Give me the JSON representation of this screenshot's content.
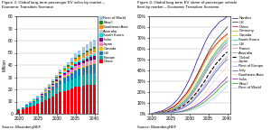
{
  "chart_data": [
    {
      "type": "bar",
      "stacked": true,
      "title": "Figure 3: Global long-term passenger EV sales by market –\nEconomic Transition Scenario",
      "annotation": "Source: BloombergNEF",
      "y_label": "Million",
      "x": [
        2020,
        2021,
        2022,
        2023,
        2024,
        2025,
        2026,
        2027,
        2028,
        2029,
        2030,
        2031,
        2032,
        2033,
        2034,
        2035,
        2036,
        2037,
        2038,
        2039,
        2040
      ],
      "series": [
        {
          "name": "China",
          "color": "#e8000d",
          "values": [
            3.0,
            3.5,
            5.0,
            6.0,
            7.0,
            8.0,
            9.5,
            11.0,
            12.5,
            14.0,
            16.0,
            17.5,
            18.5,
            19.5,
            20.5,
            22.0,
            22.5,
            23.0,
            23.5,
            23.8,
            24.0
          ]
        },
        {
          "name": "Europe",
          "color": "#00b0b0",
          "values": [
            0.5,
            1.0,
            1.5,
            2.0,
            2.5,
            3.0,
            3.5,
            4.0,
            4.5,
            5.0,
            5.5,
            6.0,
            6.5,
            7.0,
            7.5,
            8.0,
            8.3,
            8.6,
            8.9,
            9.1,
            9.3
          ]
        },
        {
          "name": "US",
          "color": "#1f77b4",
          "values": [
            0.3,
            0.4,
            0.6,
            0.9,
            1.2,
            1.5,
            1.8,
            2.2,
            2.6,
            3.0,
            3.5,
            4.0,
            4.4,
            4.8,
            5.2,
            5.6,
            6.0,
            6.3,
            6.6,
            6.9,
            7.2
          ]
        },
        {
          "name": "Canada",
          "color": "#e8c100",
          "values": [
            0.05,
            0.07,
            0.1,
            0.15,
            0.2,
            0.25,
            0.3,
            0.35,
            0.4,
            0.5,
            0.6,
            0.7,
            0.8,
            0.85,
            0.9,
            1.0,
            1.05,
            1.1,
            1.15,
            1.2,
            1.25
          ]
        },
        {
          "name": "Japan",
          "color": "#ff80c0",
          "values": [
            0.1,
            0.15,
            0.2,
            0.3,
            0.4,
            0.5,
            0.65,
            0.8,
            0.95,
            1.1,
            1.3,
            1.5,
            1.7,
            1.9,
            2.1,
            2.3,
            2.4,
            2.5,
            2.6,
            2.7,
            2.8
          ]
        },
        {
          "name": "India",
          "color": "#800080",
          "values": [
            0.02,
            0.04,
            0.07,
            0.12,
            0.18,
            0.25,
            0.35,
            0.45,
            0.55,
            0.7,
            0.9,
            1.1,
            1.3,
            1.5,
            1.7,
            1.9,
            2.1,
            2.3,
            2.5,
            2.7,
            2.9
          ]
        },
        {
          "name": "South Korea",
          "color": "#00e0e0",
          "values": [
            0.05,
            0.08,
            0.12,
            0.18,
            0.25,
            0.32,
            0.4,
            0.5,
            0.6,
            0.7,
            0.85,
            1.0,
            1.1,
            1.2,
            1.3,
            1.4,
            1.5,
            1.55,
            1.6,
            1.65,
            1.7
          ]
        },
        {
          "name": "Australia",
          "color": "#c8c8c8",
          "values": [
            0.02,
            0.03,
            0.05,
            0.08,
            0.12,
            0.16,
            0.2,
            0.25,
            0.3,
            0.35,
            0.42,
            0.5,
            0.55,
            0.6,
            0.65,
            0.7,
            0.75,
            0.78,
            0.81,
            0.84,
            0.87
          ]
        },
        {
          "name": "Southeast Asia",
          "color": "#ff8c00",
          "values": [
            0.02,
            0.04,
            0.07,
            0.12,
            0.18,
            0.25,
            0.35,
            0.45,
            0.55,
            0.7,
            0.9,
            1.1,
            1.3,
            1.5,
            1.7,
            2.0,
            2.2,
            2.4,
            2.6,
            2.8,
            3.0
          ]
        },
        {
          "name": "Brazil",
          "color": "#228B22",
          "values": [
            0.01,
            0.02,
            0.04,
            0.07,
            0.1,
            0.14,
            0.19,
            0.25,
            0.32,
            0.4,
            0.5,
            0.62,
            0.74,
            0.86,
            0.98,
            1.1,
            1.2,
            1.3,
            1.4,
            1.5,
            1.6
          ]
        },
        {
          "name": "Rest of World",
          "color": "#a0c8e8",
          "values": [
            0.1,
            0.15,
            0.22,
            0.32,
            0.44,
            0.58,
            0.75,
            0.95,
            1.18,
            1.44,
            1.74,
            2.08,
            2.45,
            2.85,
            3.28,
            3.74,
            4.2,
            4.7,
            5.2,
            5.7,
            6.2
          ]
        }
      ],
      "xlim": [
        2019.3,
        2040.8
      ],
      "xticks": [
        2020,
        2025,
        2030,
        2035,
        2040
      ],
      "ylim": [
        0,
        80
      ],
      "yticks": [
        0,
        10,
        20,
        30,
        40,
        50,
        60,
        70,
        80
      ],
      "grid": true,
      "legend": "upper left"
    },
    {
      "type": "line",
      "title": "Figure 4: Global long-term EV share of passenger vehicle\nfleet by market – Economic Transition Scenario",
      "annotation": "Source: BloombergNEF",
      "x": [
        2020,
        2021,
        2022,
        2023,
        2024,
        2025,
        2026,
        2027,
        2028,
        2029,
        2030,
        2031,
        2032,
        2033,
        2034,
        2035,
        2036,
        2037,
        2038,
        2039,
        2040
      ],
      "series": [
        {
          "name": "Nordics",
          "color": "#2e008b",
          "line_style": "solid",
          "values": [
            0.5,
            1,
            2,
            3,
            5,
            7,
            10,
            14,
            19,
            25,
            32,
            40,
            49,
            57,
            65,
            72,
            77,
            81,
            85,
            87,
            90
          ]
        },
        {
          "name": "UK",
          "color": "#222222",
          "line_style": "solid",
          "values": [
            0.3,
            0.6,
            1,
            2,
            3,
            5,
            7,
            10,
            14,
            18,
            23,
            29,
            36,
            43,
            50,
            57,
            63,
            68,
            72,
            76,
            80
          ]
        },
        {
          "name": "China",
          "color": "#e8000d",
          "line_style": "solid",
          "values": [
            0.2,
            0.5,
            1,
            2,
            3,
            5,
            7,
            10,
            14,
            18,
            23,
            29,
            35,
            42,
            49,
            55,
            60,
            64,
            68,
            71,
            74
          ]
        },
        {
          "name": "Germany",
          "color": "#c8a000",
          "line_style": "solid",
          "values": [
            0.2,
            0.4,
            0.8,
            1.5,
            2.5,
            4,
            6,
            9,
            12,
            16,
            21,
            27,
            33,
            40,
            47,
            53,
            58,
            63,
            67,
            70,
            73
          ]
        },
        {
          "name": "Canada",
          "color": "#d0d000",
          "line_style": "solid",
          "values": [
            0.2,
            0.4,
            0.7,
            1.2,
            2,
            3,
            5,
            7,
            10,
            14,
            18,
            23,
            29,
            35,
            41,
            47,
            53,
            58,
            62,
            66,
            70
          ]
        },
        {
          "name": "South Korea",
          "color": "#00c8c8",
          "line_style": "solid",
          "values": [
            0.2,
            0.4,
            0.7,
            1.2,
            2,
            3,
            5,
            7,
            10,
            13,
            17,
            22,
            28,
            34,
            40,
            46,
            52,
            57,
            61,
            65,
            68
          ]
        },
        {
          "name": "US",
          "color": "#5b9bd5",
          "line_style": "solid",
          "values": [
            0.2,
            0.4,
            0.7,
            1.1,
            1.8,
            2.8,
            4,
            6,
            9,
            12,
            16,
            21,
            26,
            32,
            38,
            44,
            50,
            55,
            59,
            63,
            66
          ]
        },
        {
          "name": "France",
          "color": "#ff80b0",
          "line_style": "solid",
          "values": [
            0.15,
            0.35,
            0.65,
            1.1,
            1.8,
            2.8,
            4,
            6,
            8,
            11,
            15,
            20,
            25,
            31,
            37,
            43,
            49,
            54,
            58,
            62,
            65
          ]
        },
        {
          "name": "Australia",
          "color": "#909090",
          "line_style": "solid",
          "values": [
            0.1,
            0.3,
            0.6,
            1.0,
            1.7,
            2.6,
            3.8,
            5.5,
            7.8,
            11,
            14,
            19,
            24,
            30,
            36,
            42,
            47,
            52,
            56,
            60,
            63
          ]
        },
        {
          "name": "Global",
          "color": "#000000",
          "line_style": "dashed",
          "values": [
            0.1,
            0.25,
            0.5,
            0.9,
            1.5,
            2.3,
            3.3,
            4.7,
            6.5,
            9,
            12,
            16,
            20,
            25,
            30,
            36,
            41,
            46,
            50,
            54,
            57
          ]
        },
        {
          "name": "Japan",
          "color": "#ffaaaa",
          "line_style": "solid",
          "values": [
            0.1,
            0.2,
            0.4,
            0.7,
            1.2,
            1.9,
            2.8,
            4,
            5.6,
            7.7,
            10,
            14,
            18,
            22,
            27,
            32,
            37,
            42,
            46,
            50,
            53
          ]
        },
        {
          "name": "Rest of Europe",
          "color": "#88ccee",
          "line_style": "solid",
          "values": [
            0.1,
            0.2,
            0.4,
            0.7,
            1.1,
            1.8,
            2.7,
            3.9,
            5.4,
            7.3,
            10,
            13,
            17,
            21,
            26,
            31,
            36,
            41,
            45,
            49,
            52
          ]
        },
        {
          "name": "Italy",
          "color": "#4444cc",
          "line_style": "solid",
          "values": [
            0.1,
            0.2,
            0.4,
            0.6,
            1.0,
            1.6,
            2.4,
            3.5,
            4.9,
            6.7,
            9,
            12,
            16,
            20,
            24,
            29,
            34,
            39,
            43,
            47,
            50
          ]
        },
        {
          "name": "Southeast Asia",
          "color": "#ffcccc",
          "line_style": "solid",
          "values": [
            0.05,
            0.1,
            0.2,
            0.4,
            0.7,
            1.1,
            1.7,
            2.5,
            3.6,
            5,
            7,
            9,
            12,
            15,
            19,
            23,
            28,
            32,
            36,
            40,
            44
          ]
        },
        {
          "name": "India",
          "color": "#9900cc",
          "line_style": "solid",
          "values": [
            0.04,
            0.08,
            0.15,
            0.28,
            0.48,
            0.76,
            1.1,
            1.7,
            2.4,
            3.4,
            4.7,
            6.3,
            8.3,
            10.7,
            13.5,
            16.7,
            20,
            23,
            27,
            30,
            34
          ]
        },
        {
          "name": "Brazil",
          "color": "#00aa00",
          "line_style": "solid",
          "values": [
            0.03,
            0.06,
            0.12,
            0.22,
            0.38,
            0.6,
            0.9,
            1.3,
            1.9,
            2.7,
            3.8,
            5.1,
            6.8,
            8.7,
            11,
            14,
            17,
            20,
            24,
            27,
            30
          ]
        },
        {
          "name": "Rest of World",
          "color": "#aaccff",
          "line_style": "solid",
          "values": [
            0.02,
            0.05,
            0.09,
            0.16,
            0.28,
            0.44,
            0.66,
            0.96,
            1.38,
            1.9,
            2.7,
            3.7,
            5.0,
            6.5,
            8.4,
            10.7,
            13.3,
            16,
            19,
            22,
            26
          ]
        }
      ],
      "xlim": [
        2019.3,
        2040.8
      ],
      "xticks": [
        2020,
        2025,
        2030,
        2035,
        2040
      ],
      "ylim": [
        0,
        90
      ],
      "yticks": [
        {
          "value": 0,
          "label": "0%"
        },
        {
          "value": 10,
          "label": "10%"
        },
        {
          "value": 20,
          "label": "20%"
        },
        {
          "value": 30,
          "label": "30%"
        },
        {
          "value": 40,
          "label": "40%"
        },
        {
          "value": 50,
          "label": "50%"
        },
        {
          "value": 60,
          "label": "60%"
        },
        {
          "value": 70,
          "label": "70%"
        },
        {
          "value": 80,
          "label": "80%"
        },
        {
          "value": 90,
          "label": "90%"
        }
      ],
      "grid": true,
      "legend": "upper left"
    }
  ]
}
